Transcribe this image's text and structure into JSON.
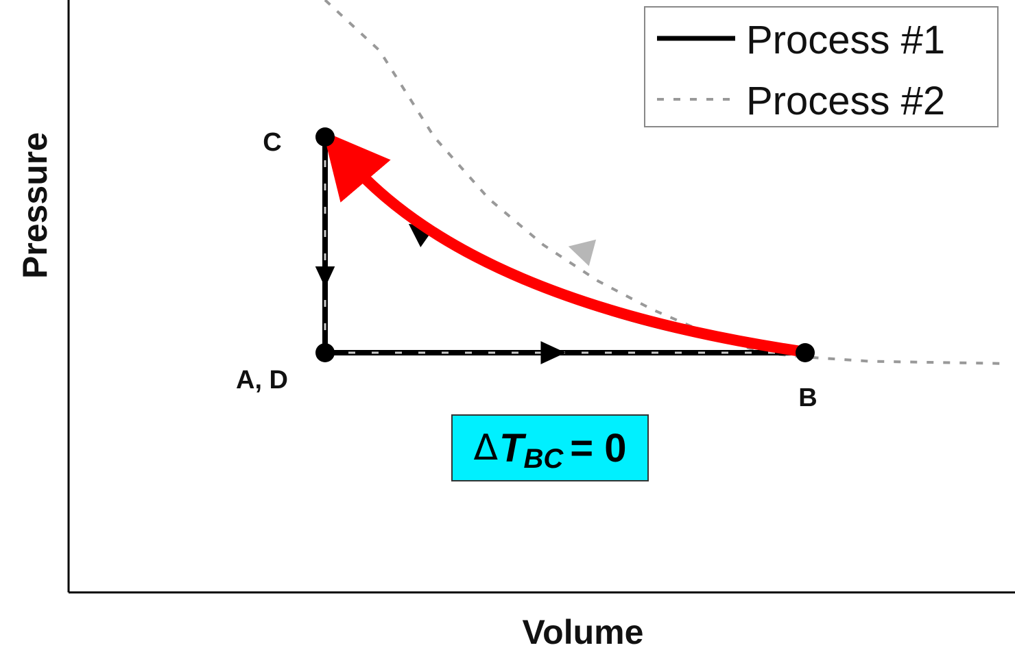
{
  "chart_data": {
    "type": "line",
    "xlabel": "Volume",
    "ylabel": "Pressure",
    "title": "",
    "grid": false,
    "legend": {
      "placement": "top-right",
      "entries": [
        {
          "label": "Process #1",
          "style": "solid"
        },
        {
          "label": "Process #2",
          "style": "dashed"
        }
      ]
    },
    "points": [
      {
        "id": "AD",
        "label": "A, D",
        "x": 1.0,
        "y": 1.0
      },
      {
        "id": "B",
        "label": "B",
        "x": 3.2,
        "y": 1.0
      },
      {
        "id": "C",
        "label": "C",
        "x": 1.0,
        "y": 2.0
      }
    ],
    "series": [
      {
        "name": "Process #1",
        "style": "solid",
        "color": "#000000",
        "path": [
          [
            1.0,
            2.0
          ],
          [
            1.0,
            1.0
          ],
          [
            3.2,
            1.0
          ],
          [
            1.0,
            2.0
          ]
        ],
        "segments": [
          "C-A",
          "A-B",
          "B-C"
        ]
      },
      {
        "name": "Process #2",
        "style": "dashed",
        "color": "#999999",
        "x": [
          1.0,
          1.25,
          1.5,
          1.75,
          2.0,
          2.25,
          2.5,
          2.75,
          3.0,
          3.2,
          3.5,
          4.1
        ],
        "y": [
          3.0,
          2.4,
          2.0,
          1.714,
          1.5,
          1.333,
          1.2,
          1.091,
          1.0,
          0.98,
          0.96,
          0.95
        ]
      }
    ],
    "highlight": {
      "from": "B",
      "to": "C",
      "color": "#ff0000"
    },
    "annotation": {
      "symbol": "Δ",
      "variable": "T",
      "subscript": "BC",
      "rest": "= 0",
      "background": "#00f0ff"
    }
  }
}
